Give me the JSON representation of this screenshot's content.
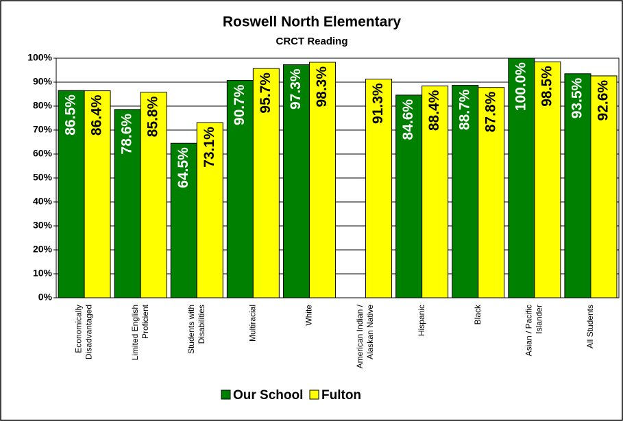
{
  "chart_data": {
    "type": "bar",
    "title": "Roswell North Elementary",
    "subtitle": "CRCT Reading",
    "categories": [
      [
        "Economically",
        "Disadvantaged"
      ],
      [
        "Limited English",
        "Proficient"
      ],
      [
        "Students with",
        "Disabilities"
      ],
      [
        "Multiracial"
      ],
      [
        "White"
      ],
      [
        "American Indian /",
        "Alaskan Native"
      ],
      [
        "Hispanic"
      ],
      [
        "Black"
      ],
      [
        "Asian / Pacific",
        "Islander"
      ],
      [
        "All Students"
      ]
    ],
    "series": [
      {
        "name": "Our School",
        "color": "#008000",
        "label_color": "#ffffff",
        "values": [
          86.5,
          78.6,
          64.5,
          90.7,
          97.3,
          null,
          84.6,
          88.7,
          100.0,
          93.5
        ],
        "value_labels": [
          "86.5%",
          "78.6%",
          "64.5%",
          "90.7%",
          "97.3%",
          null,
          "84.6%",
          "88.7%",
          "100.0%",
          "93.5%"
        ]
      },
      {
        "name": "Fulton",
        "color": "#ffff00",
        "label_color": "#000000",
        "values": [
          86.4,
          85.8,
          73.1,
          95.7,
          98.3,
          91.3,
          88.4,
          87.8,
          98.5,
          92.6
        ],
        "value_labels": [
          "86.4%",
          "85.8%",
          "73.1%",
          "95.7%",
          "98.3%",
          "91.3%",
          "88.4%",
          "87.8%",
          "98.5%",
          "92.6%"
        ]
      }
    ],
    "ylim": [
      0,
      100
    ],
    "yticks": [
      {
        "value": 0,
        "label": "0%"
      },
      {
        "value": 10,
        "label": "10%"
      },
      {
        "value": 20,
        "label": "20%"
      },
      {
        "value": 30,
        "label": "30%"
      },
      {
        "value": 40,
        "label": "40%"
      },
      {
        "value": 50,
        "label": "50%"
      },
      {
        "value": 60,
        "label": "60%"
      },
      {
        "value": 70,
        "label": "70%"
      },
      {
        "value": 80,
        "label": "80%"
      },
      {
        "value": 90,
        "label": "90%"
      },
      {
        "value": 100,
        "label": "100%"
      }
    ],
    "grid": true,
    "legend": "bottom"
  }
}
